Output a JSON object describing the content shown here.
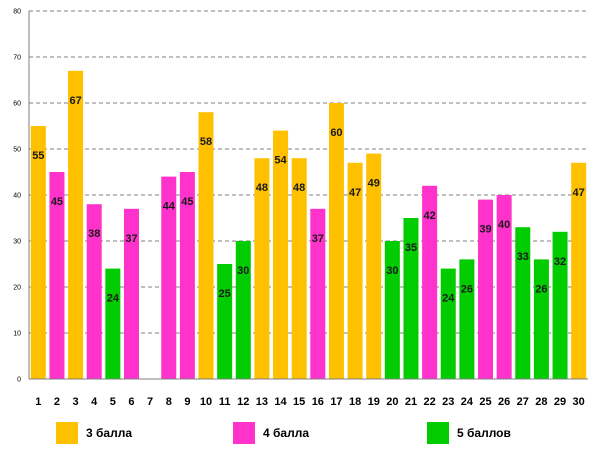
{
  "chart_data": {
    "type": "bar",
    "categories": [
      "1",
      "2",
      "3",
      "4",
      "5",
      "6",
      "7",
      "8",
      "9",
      "10",
      "11",
      "12",
      "13",
      "14",
      "15",
      "16",
      "17",
      "18",
      "19",
      "20",
      "21",
      "22",
      "23",
      "24",
      "25",
      "26",
      "27",
      "28",
      "29",
      "30"
    ],
    "values": [
      55,
      45,
      67,
      38,
      24,
      37,
      null,
      44,
      45,
      58,
      25,
      30,
      48,
      54,
      48,
      37,
      60,
      47,
      49,
      30,
      35,
      42,
      24,
      26,
      39,
      40,
      33,
      26,
      32,
      47
    ],
    "groups": [
      "3 балла",
      "4 балла",
      "3 балла",
      "4 балла",
      "5 баллов",
      "4 балла",
      null,
      "4 балла",
      "4 балла",
      "3 балла",
      "5 баллов",
      "5 баллов",
      "3 балла",
      "3 балла",
      "3 балла",
      "4 балла",
      "3 балла",
      "3 балла",
      "3 балла",
      "5 баллов",
      "5 баллов",
      "4 балла",
      "5 баллов",
      "5 баллов",
      "4 балла",
      "4 балла",
      "5 баллов",
      "5 баллов",
      "5 баллов",
      "3 балла"
    ],
    "legend": [
      {
        "name": "3 балла",
        "color": "#FFC000"
      },
      {
        "name": "4 балла",
        "color": "#FF33CC"
      },
      {
        "name": "5 баллов",
        "color": "#00CC00"
      }
    ],
    "yticks": [
      "0",
      "10",
      "20",
      "30",
      "40",
      "50",
      "60",
      "70",
      "80"
    ],
    "ylim": [
      0,
      80
    ],
    "grid": true,
    "legend_position": "bottom",
    "title": "",
    "xlabel": "",
    "ylabel": ""
  }
}
